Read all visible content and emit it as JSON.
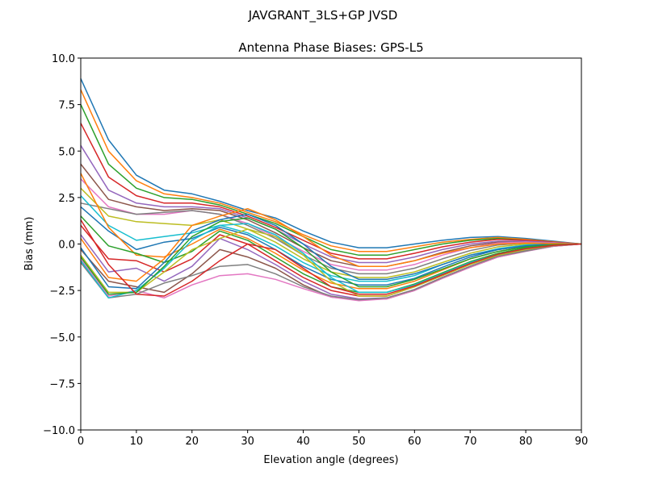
{
  "chart_data": {
    "type": "line",
    "suptitle": "JAVGRANT_3LS+GP JVSD",
    "title": "Antenna Phase Biases: GPS-L5",
    "xlabel": "Elevation angle (degrees)",
    "ylabel": "Bias (mm)",
    "xlim": [
      0,
      90
    ],
    "ylim": [
      -10,
      10
    ],
    "xticks": [
      0,
      10,
      20,
      30,
      40,
      50,
      60,
      70,
      80,
      90
    ],
    "xtick_labels": [
      "0",
      "10",
      "20",
      "30",
      "40",
      "50",
      "60",
      "70",
      "80",
      "90"
    ],
    "yticks": [
      -10,
      -7.5,
      -5,
      -2.5,
      0,
      2.5,
      5,
      7.5,
      10
    ],
    "ytick_labels": [
      "−10.0",
      "−7.5",
      "−5.0",
      "−2.5",
      "0.0",
      "2.5",
      "5.0",
      "7.5",
      "10.0"
    ],
    "grid": false,
    "colors": [
      "#1f77b4",
      "#ff7f0e",
      "#2ca02c",
      "#d62728",
      "#9467bd",
      "#8c564b",
      "#e377c2",
      "#7f7f7f",
      "#bcbd22",
      "#17becf"
    ],
    "x": [
      0,
      5,
      10,
      15,
      20,
      25,
      30,
      35,
      40,
      45,
      50,
      55,
      60,
      65,
      70,
      75,
      80,
      85,
      90
    ],
    "series": [
      [
        8.9,
        5.6,
        3.7,
        2.9,
        2.7,
        2.3,
        1.8,
        1.4,
        0.7,
        0.1,
        -0.2,
        -0.2,
        0.0,
        0.2,
        0.35,
        0.4,
        0.3,
        0.15,
        0
      ],
      [
        8.3,
        5.0,
        3.4,
        2.7,
        2.5,
        2.2,
        1.7,
        1.2,
        0.5,
        -0.1,
        -0.4,
        -0.4,
        -0.15,
        0.1,
        0.25,
        0.35,
        0.25,
        0.12,
        0
      ],
      [
        7.5,
        4.3,
        3.0,
        2.5,
        2.4,
        2.1,
        1.6,
        1.1,
        0.4,
        -0.3,
        -0.6,
        -0.6,
        -0.3,
        0.0,
        0.2,
        0.3,
        0.2,
        0.1,
        0
      ],
      [
        6.5,
        3.6,
        2.6,
        2.2,
        2.2,
        2.0,
        1.5,
        0.9,
        0.2,
        -0.5,
        -0.8,
        -0.8,
        -0.5,
        -0.15,
        0.1,
        0.25,
        0.2,
        0.1,
        0
      ],
      [
        5.3,
        2.9,
        2.2,
        2.0,
        2.0,
        1.9,
        1.4,
        0.8,
        0.0,
        -0.7,
        -1.0,
        -1.0,
        -0.7,
        -0.3,
        0.0,
        0.15,
        0.15,
        0.08,
        0
      ],
      [
        4.3,
        2.4,
        2.0,
        1.8,
        1.9,
        1.8,
        1.3,
        0.6,
        -0.2,
        -0.9,
        -1.2,
        -1.2,
        -0.9,
        -0.45,
        -0.1,
        0.1,
        0.1,
        0.05,
        0
      ],
      [
        3.5,
        2.0,
        1.6,
        1.6,
        1.8,
        1.6,
        1.1,
        0.4,
        -0.4,
        -1.1,
        -1.4,
        -1.4,
        -1.1,
        -0.6,
        -0.2,
        0.05,
        0.1,
        0.05,
        0
      ],
      [
        2.2,
        1.9,
        1.6,
        1.7,
        1.8,
        1.6,
        1.0,
        0.3,
        -0.6,
        -1.3,
        -1.6,
        -1.6,
        -1.3,
        -0.8,
        -0.35,
        -0.05,
        0.05,
        0.03,
        0
      ],
      [
        3.0,
        1.5,
        1.2,
        1.1,
        1.0,
        1.3,
        0.8,
        0.1,
        -0.8,
        -1.5,
        -1.8,
        -1.8,
        -1.5,
        -1.0,
        -0.5,
        -0.15,
        0.0,
        0.02,
        0
      ],
      [
        2.6,
        1.0,
        0.2,
        0.4,
        0.6,
        1.0,
        0.6,
        -0.1,
        -1.0,
        -1.7,
        -2.0,
        -2.0,
        -1.7,
        -1.1,
        -0.6,
        -0.25,
        -0.05,
        0.0,
        0
      ],
      [
        2.0,
        0.7,
        -0.3,
        0.1,
        0.3,
        0.9,
        0.5,
        -0.3,
        -1.2,
        -1.9,
        -2.2,
        -2.2,
        -1.85,
        -1.25,
        -0.7,
        -0.3,
        -0.1,
        0.0,
        0
      ],
      [
        3.8,
        0.9,
        -0.6,
        -0.7,
        0.0,
        0.8,
        0.3,
        -0.5,
        -1.4,
        -2.1,
        -2.4,
        -2.4,
        -2.0,
        -1.4,
        -0.8,
        -0.4,
        -0.15,
        -0.03,
        0
      ],
      [
        1.5,
        -0.1,
        -0.5,
        -1.0,
        -0.4,
        0.7,
        0.2,
        -0.7,
        -1.6,
        -2.3,
        -2.6,
        -2.6,
        -2.15,
        -1.55,
        -0.95,
        -0.5,
        -0.2,
        -0.05,
        0
      ],
      [
        1.0,
        -0.8,
        -0.9,
        -1.5,
        -0.8,
        0.5,
        0.0,
        -0.9,
        -1.8,
        -2.5,
        -2.8,
        -2.8,
        -2.3,
        -1.7,
        -1.1,
        -0.6,
        -0.3,
        -0.08,
        0
      ],
      [
        0.5,
        -1.5,
        -1.3,
        -2.0,
        -1.2,
        0.3,
        -0.3,
        -1.1,
        -2.0,
        -2.7,
        -2.95,
        -2.9,
        -2.45,
        -1.8,
        -1.2,
        -0.65,
        -0.35,
        -0.1,
        0
      ],
      [
        -0.3,
        -2.0,
        -2.3,
        -2.6,
        -1.6,
        -0.3,
        -0.7,
        -1.3,
        -2.2,
        -2.85,
        -3.0,
        -2.95,
        -2.5,
        -1.85,
        -1.25,
        -0.7,
        -0.38,
        -0.12,
        0
      ],
      [
        -0.8,
        -2.8,
        -2.5,
        -2.9,
        -2.2,
        -1.7,
        -1.6,
        -1.9,
        -2.4,
        -2.85,
        -3.05,
        -2.95,
        -2.5,
        -1.85,
        -1.25,
        -0.7,
        -0.4,
        -0.12,
        0
      ],
      [
        -1.0,
        -2.9,
        -2.7,
        -2.1,
        -1.7,
        -1.2,
        -1.1,
        -1.6,
        -2.3,
        -2.8,
        -3.0,
        -2.9,
        -2.45,
        -1.8,
        -1.2,
        -0.65,
        -0.38,
        -0.1,
        0
      ],
      [
        -0.6,
        -2.6,
        -2.6,
        -1.5,
        -0.3,
        0.3,
        0.8,
        0.4,
        -0.6,
        -2.0,
        -2.8,
        -2.8,
        -2.3,
        -1.7,
        -1.1,
        -0.6,
        -0.3,
        -0.08,
        0
      ],
      [
        -0.9,
        -2.9,
        -2.5,
        -1.3,
        0.2,
        1.0,
        1.1,
        0.5,
        -0.5,
        -1.8,
        -2.6,
        -2.6,
        -2.2,
        -1.6,
        -1.0,
        -0.55,
        -0.25,
        -0.06,
        0
      ],
      [
        -0.2,
        -2.3,
        -2.4,
        -1.0,
        0.7,
        1.3,
        1.6,
        1.0,
        0.0,
        -1.2,
        -1.9,
        -1.9,
        -1.6,
        -1.1,
        -0.6,
        -0.3,
        -0.1,
        0.0,
        0
      ],
      [
        0.3,
        -1.8,
        -2.0,
        -0.8,
        1.0,
        1.5,
        1.9,
        1.3,
        0.4,
        -0.6,
        -1.2,
        -1.2,
        -0.9,
        -0.5,
        -0.2,
        0.0,
        0.05,
        0.02,
        0
      ],
      [
        -0.7,
        -2.7,
        -2.6,
        -1.2,
        0.4,
        1.2,
        1.4,
        0.8,
        -0.2,
        -1.5,
        -2.3,
        -2.3,
        -1.9,
        -1.35,
        -0.8,
        -0.4,
        -0.15,
        -0.03,
        0
      ],
      [
        1.3,
        -1.1,
        -2.7,
        -2.8,
        -2.0,
        -0.9,
        0.0,
        -0.3,
        -1.3,
        -2.3,
        -2.7,
        -2.7,
        -2.25,
        -1.65,
        -1.05,
        -0.55,
        -0.25,
        -0.07,
        0
      ]
    ]
  }
}
